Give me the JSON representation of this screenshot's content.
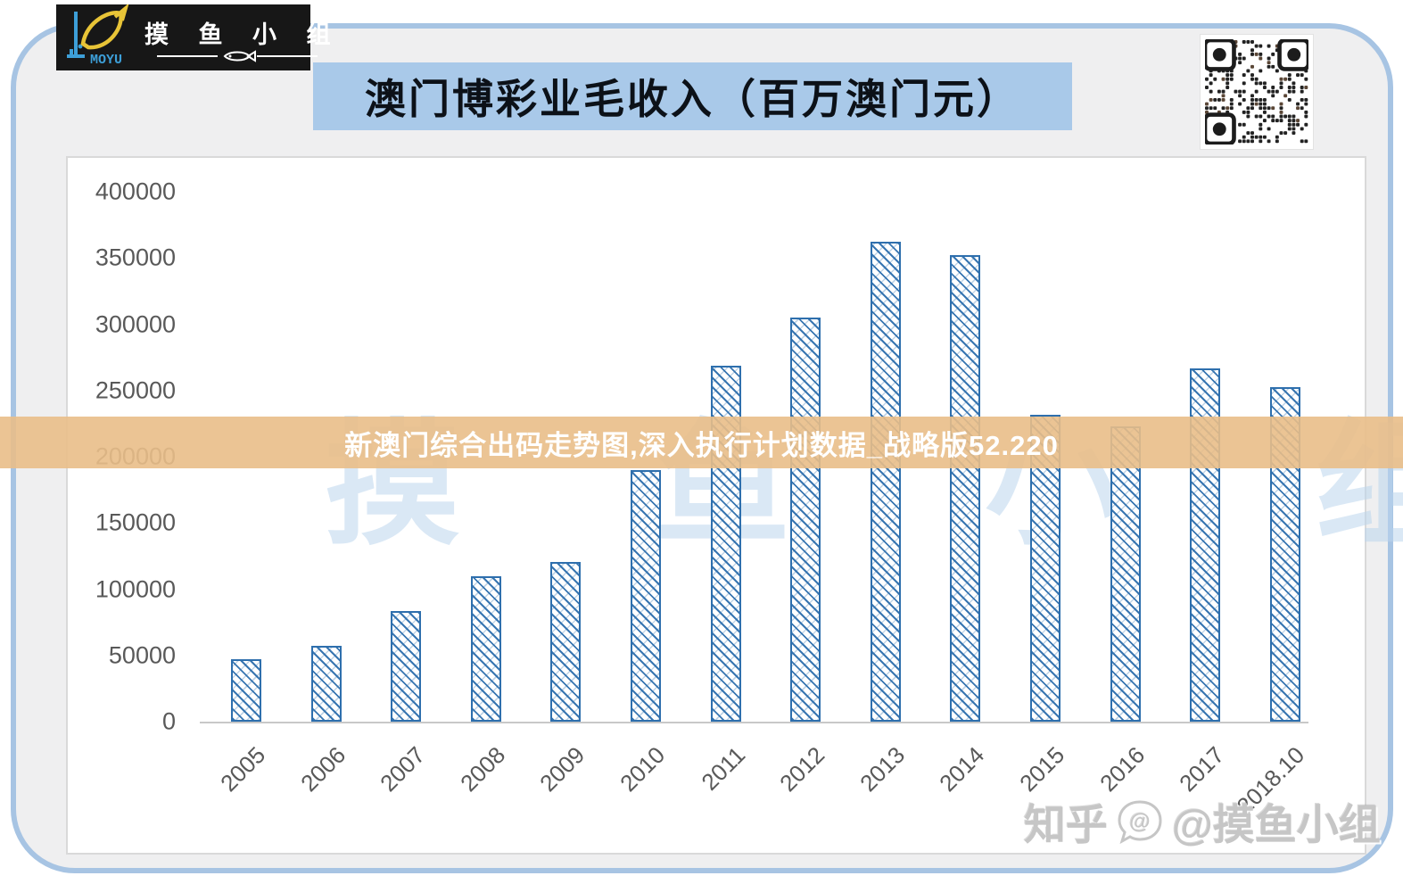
{
  "header": {
    "brand": {
      "name": "MOYU",
      "name_cn": "摸 鱼 小 组"
    },
    "title": "澳门博彩业毛收入（百万澳门元）",
    "qr": "qr-code"
  },
  "overlay_banner": {
    "text": "新澳门综合出码走势图,深入执行计划数据_战略版52.220",
    "color": "#e9be88"
  },
  "watermarks": {
    "chart_watermark": "摸 鱼 小 组",
    "credit_site": "知乎",
    "credit_handle": "@摸鱼小组"
  },
  "chart_data": {
    "type": "bar",
    "title": "澳门博彩业毛收入（百万澳门元）",
    "categories": [
      "2005",
      "2006",
      "2007",
      "2008",
      "2009",
      "2010",
      "2011",
      "2012",
      "2013",
      "2014",
      "2015",
      "2016",
      "2017",
      "2018.10"
    ],
    "values": [
      47000,
      57500,
      83500,
      110000,
      120500,
      190000,
      269000,
      305000,
      362000,
      352500,
      231500,
      223000,
      267000,
      252500
    ],
    "ylim": [
      0,
      400000
    ],
    "ytick_step": 50000,
    "ytick_labels": [
      "0",
      "50000",
      "100000",
      "150000",
      "200000",
      "250000",
      "300000",
      "350000",
      "400000"
    ],
    "xlabel": "",
    "ylabel": "",
    "grid": false,
    "legend": null,
    "bar_border_color": "#2e6fad",
    "bar_fill_style": "diagonal-hatch",
    "axis_label_color": "#595959"
  }
}
